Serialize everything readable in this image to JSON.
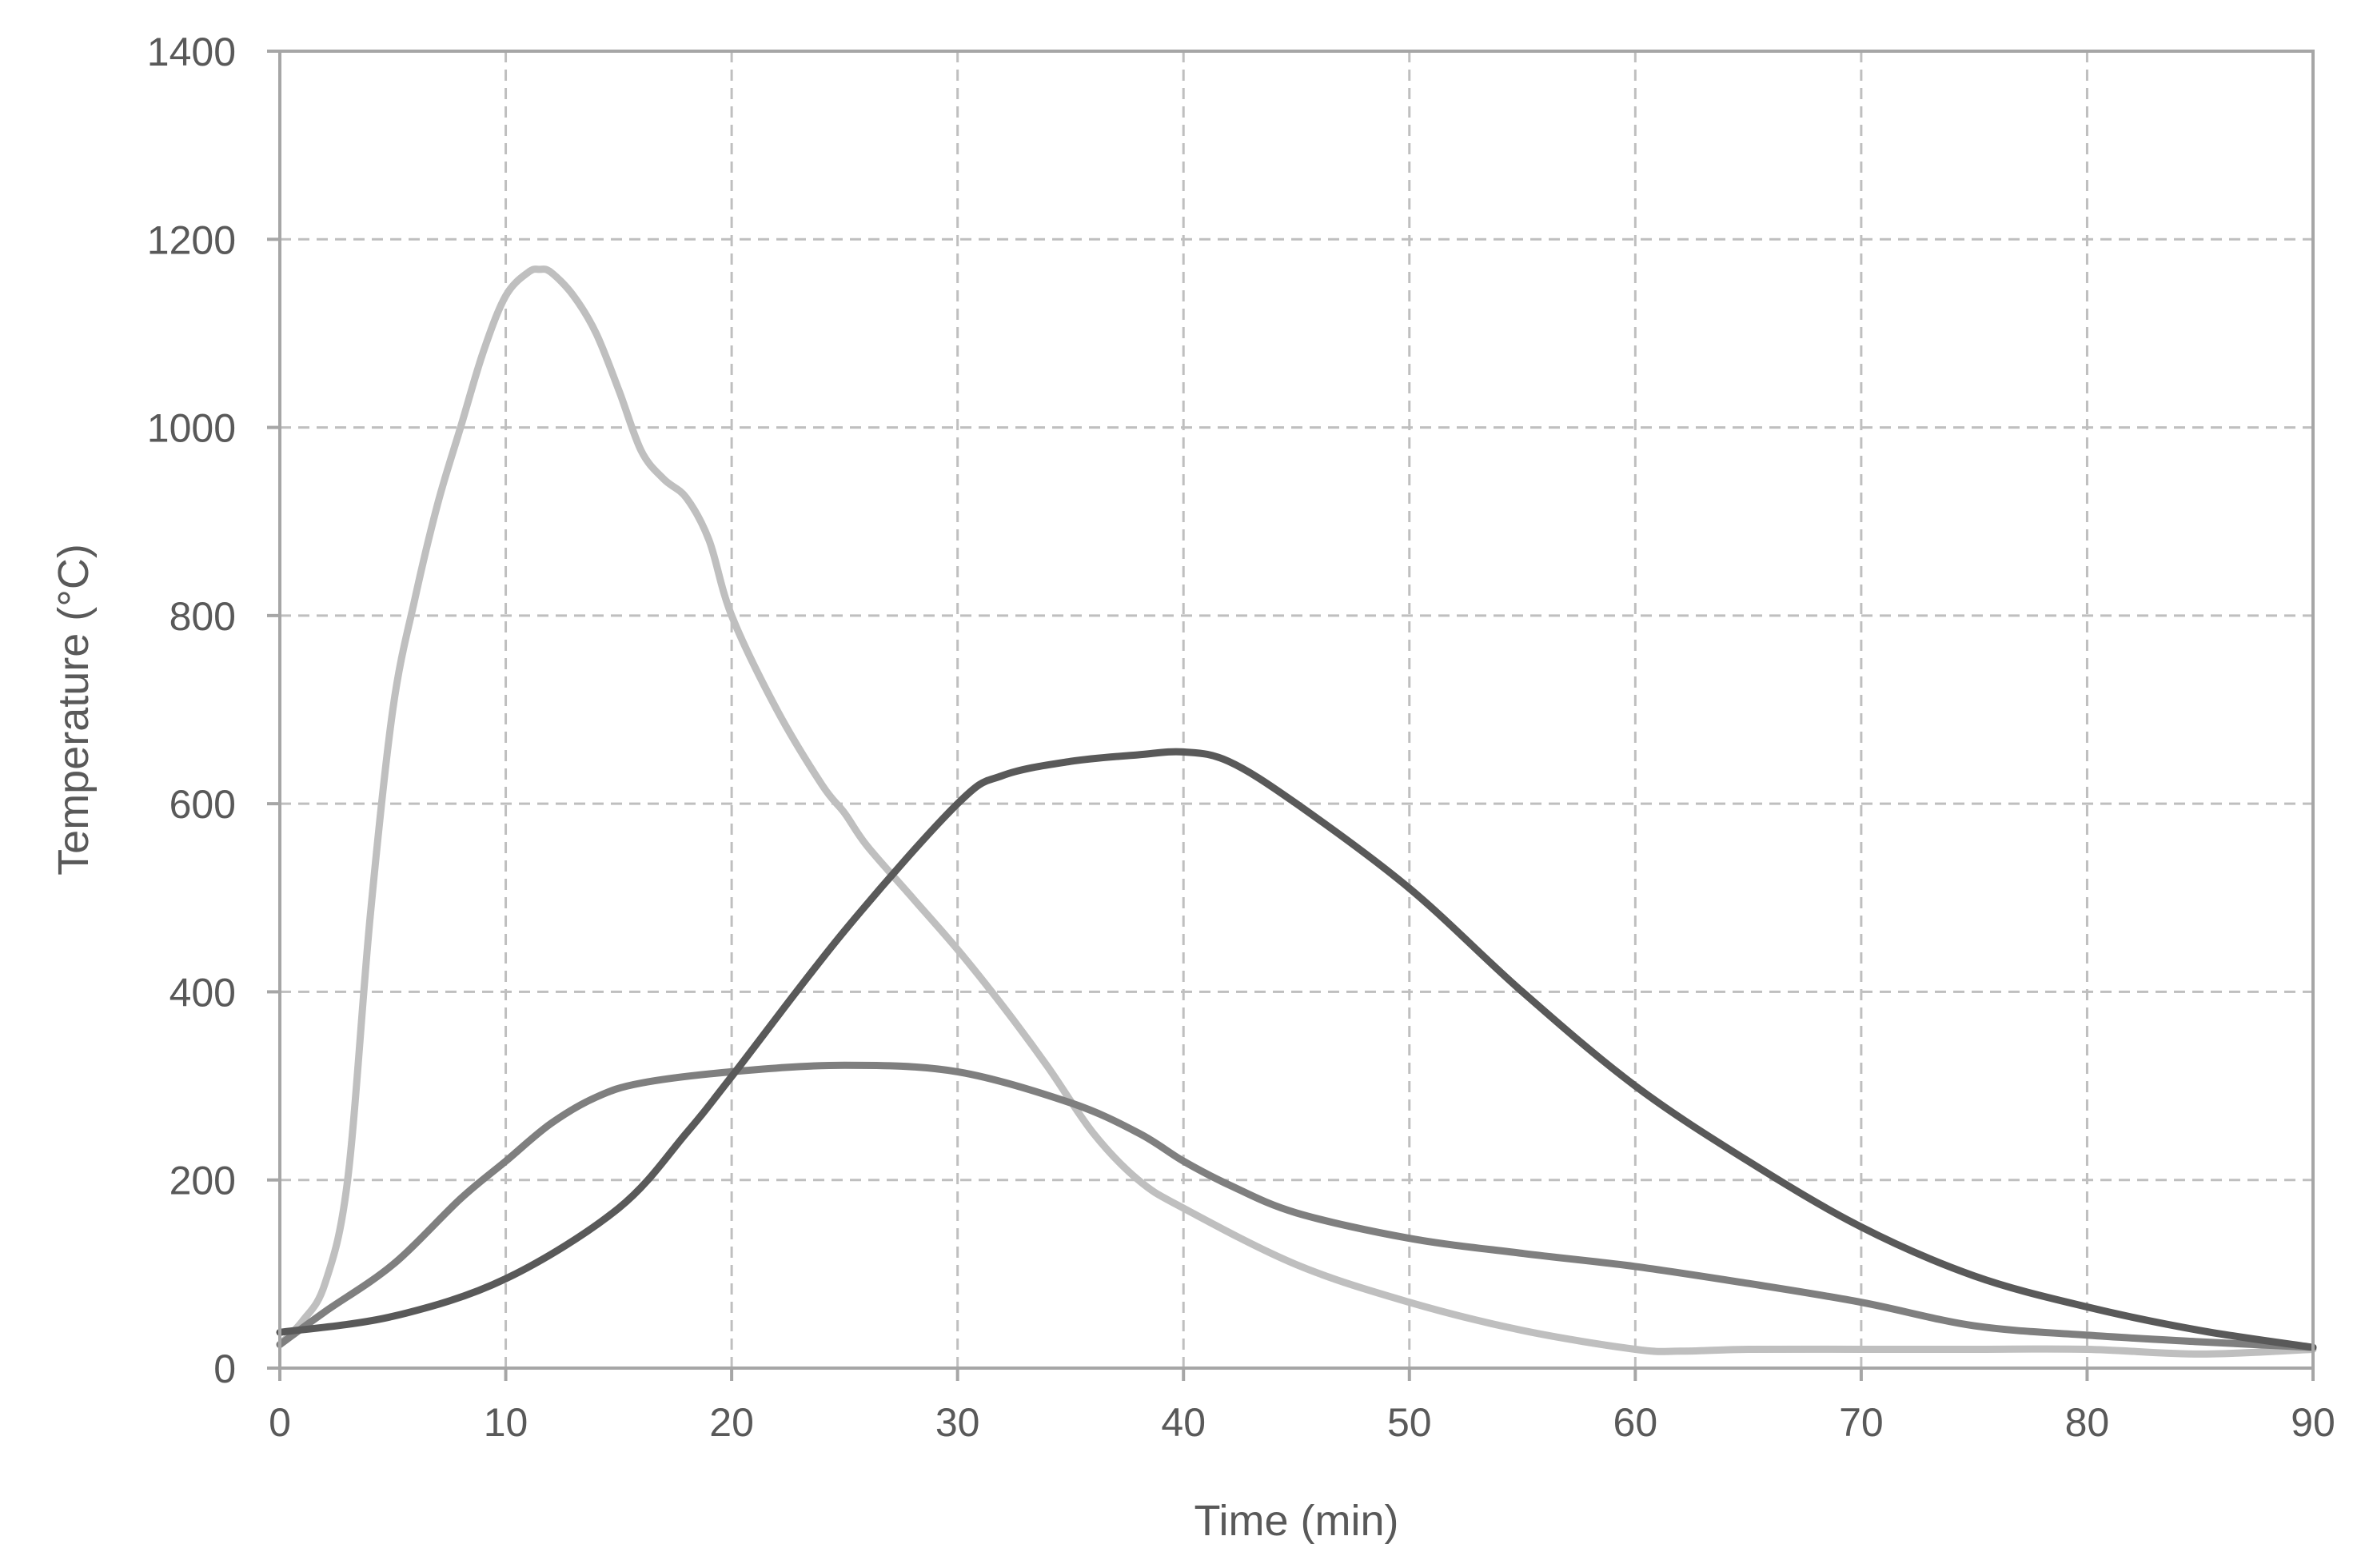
{
  "chart_data": {
    "type": "line",
    "title": "",
    "xlabel": "Time (min)",
    "ylabel": "Temperature (°C)",
    "xlim": [
      0,
      90
    ],
    "ylim": [
      0,
      1400
    ],
    "xticks": [
      0,
      10,
      20,
      30,
      40,
      50,
      60,
      70,
      80,
      90
    ],
    "yticks": [
      0,
      200,
      400,
      600,
      800,
      1000,
      1200,
      1400
    ],
    "grid": true,
    "legend": "none",
    "series": [
      {
        "color": "#bfbfbf",
        "x": [
          0,
          1,
          2,
          3,
          4,
          5,
          6,
          7,
          8,
          9,
          10,
          11,
          11.5,
          12,
          13,
          14,
          15,
          16,
          17,
          18,
          19,
          20,
          22,
          24,
          25,
          26,
          28,
          30,
          32,
          34,
          36,
          38,
          40,
          45,
          50,
          55,
          60,
          62,
          65,
          70,
          75,
          80,
          85,
          90
        ],
        "y": [
          25,
          50,
          90,
          200,
          480,
          700,
          820,
          920,
          1000,
          1080,
          1140,
          1165,
          1168,
          1165,
          1140,
          1100,
          1040,
          975,
          945,
          925,
          880,
          800,
          700,
          620,
          590,
          555,
          500,
          445,
          385,
          320,
          250,
          200,
          170,
          110,
          70,
          40,
          20,
          18,
          20,
          20,
          20,
          20,
          15,
          20
        ]
      },
      {
        "color": "#7f7f7f",
        "x": [
          0,
          2,
          5,
          8,
          10,
          12,
          14,
          16,
          20,
          25,
          30,
          35,
          38,
          40,
          42,
          45,
          50,
          55,
          60,
          65,
          70,
          75,
          80,
          85,
          90
        ],
        "y": [
          25,
          60,
          110,
          180,
          220,
          260,
          288,
          303,
          315,
          322,
          315,
          282,
          250,
          220,
          195,
          165,
          138,
          122,
          108,
          90,
          70,
          45,
          35,
          28,
          22
        ]
      },
      {
        "color": "#595959",
        "x": [
          0,
          5,
          10,
          15,
          18,
          20,
          25,
          30,
          32,
          35,
          38,
          40,
          42,
          45,
          50,
          55,
          60,
          65,
          70,
          75,
          80,
          85,
          90
        ],
        "y": [
          38,
          55,
          95,
          170,
          250,
          310,
          465,
          600,
          630,
          645,
          652,
          655,
          645,
          600,
          510,
          400,
          300,
          220,
          150,
          98,
          65,
          40,
          22
        ]
      }
    ]
  }
}
